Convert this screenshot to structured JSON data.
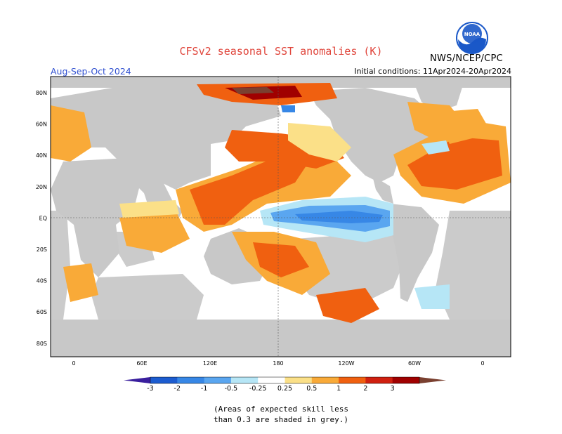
{
  "header": {
    "title": "CFSv2 seasonal SST anomalies (K)",
    "credit": "NWS/NCEP/CPC",
    "season": "Aug-Sep-Oct 2024",
    "initial_conditions": "Initial conditions: 11Apr2024-20Apr2024"
  },
  "logo": {
    "text": "NOAA",
    "color": "#1a58c8"
  },
  "map": {
    "lat_labels": [
      "80N",
      "60N",
      "40N",
      "20N",
      "EQ",
      "20S",
      "40S",
      "60S",
      "80S"
    ],
    "lon_labels": [
      "0",
      "60E",
      "120E",
      "180",
      "120W",
      "60W",
      "0"
    ],
    "colors": {
      "land": "#c8c8c8",
      "ocean": "#ffffff",
      "grid": "#555555"
    }
  },
  "colorbar": {
    "ticks": [
      "-3",
      "-2",
      "-1",
      "-0.5",
      "-0.25",
      "0.25",
      "0.5",
      "1",
      "2",
      "3"
    ],
    "colors": [
      "#3a1f9e",
      "#1c5cd0",
      "#3787e6",
      "#5aa6f0",
      "#b6e6f6",
      "#ffffff",
      "#fbe088",
      "#f9aa38",
      "#f06010",
      "#d02010",
      "#a00000",
      "#7a4030"
    ]
  },
  "note": {
    "line1": "(Areas of expected skill less",
    "line2": "than 0.3 are shaded in grey.)"
  }
}
